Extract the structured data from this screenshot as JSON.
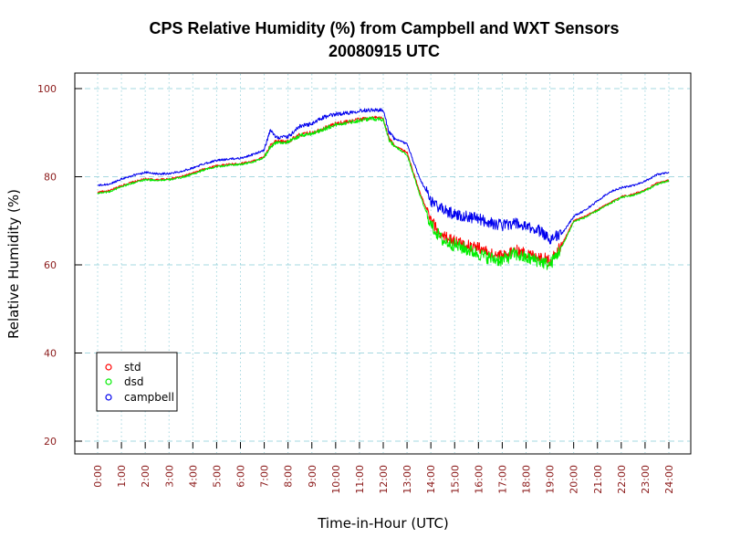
{
  "chart_data": {
    "type": "line",
    "title": "CPS Relative Humidity (%) from Campbell and WXT Sensors",
    "subtitle": "20080915  UTC",
    "xlabel": "Time-in-Hour (UTC)",
    "ylabel": "Relative Humidity (%)",
    "xlim": [
      0,
      24
    ],
    "ylim": [
      17,
      104
    ],
    "x_ticks": [
      "0:00",
      "1:00",
      "2:00",
      "3:00",
      "4:00",
      "5:00",
      "6:00",
      "7:00",
      "8:00",
      "9:00",
      "10:00",
      "11:00",
      "12:00",
      "13:00",
      "14:00",
      "15:00",
      "16:00",
      "17:00",
      "18:00",
      "19:00",
      "20:00",
      "21:00",
      "22:00",
      "23:00",
      "24:00"
    ],
    "y_ticks": [
      20,
      40,
      60,
      80,
      100
    ],
    "grid": true,
    "legend_position": "bottom-left",
    "x": [
      0,
      0.5,
      1,
      1.5,
      2,
      2.5,
      3,
      3.5,
      4,
      4.5,
      5,
      5.5,
      6,
      6.5,
      7,
      7.25,
      7.5,
      8,
      8.5,
      9,
      9.5,
      10,
      10.5,
      11,
      11.5,
      12,
      12.25,
      12.5,
      13,
      13.5,
      14,
      14.5,
      15,
      15.5,
      16,
      16.5,
      17,
      17.5,
      18,
      18.5,
      19,
      19.5,
      20,
      20.5,
      21,
      21.5,
      22,
      22.5,
      23,
      23.5,
      24
    ],
    "series": [
      {
        "name": "std",
        "color": "#ff0000",
        "values": [
          76.5,
          76.8,
          78.0,
          78.8,
          79.5,
          79.3,
          79.5,
          80.0,
          80.8,
          81.8,
          82.5,
          82.8,
          83.0,
          83.5,
          84.5,
          87.0,
          88.0,
          88.0,
          89.5,
          90.0,
          91.0,
          92.0,
          92.5,
          93.0,
          93.4,
          93.2,
          88.5,
          87.0,
          85.5,
          77.0,
          70.0,
          66.5,
          65.5,
          64.5,
          64.0,
          62.5,
          62.0,
          63.5,
          62.5,
          62.0,
          61.0,
          64.5,
          70.0,
          71.0,
          72.5,
          74.0,
          75.5,
          76.0,
          77.0,
          78.5,
          79.2
        ]
      },
      {
        "name": "dsd",
        "color": "#00ee00",
        "values": [
          76.3,
          76.6,
          77.8,
          78.6,
          79.3,
          79.2,
          79.3,
          79.8,
          80.6,
          81.6,
          82.3,
          82.6,
          82.8,
          83.3,
          84.3,
          86.8,
          87.8,
          87.8,
          89.3,
          89.8,
          90.8,
          91.8,
          92.3,
          92.8,
          93.2,
          93.0,
          88.3,
          86.8,
          85.0,
          76.5,
          69.0,
          65.5,
          64.5,
          63.5,
          62.5,
          61.5,
          61.0,
          62.5,
          61.5,
          61.0,
          60.0,
          64.0,
          69.8,
          70.8,
          72.3,
          73.8,
          75.3,
          75.8,
          76.8,
          78.3,
          79.0
        ]
      },
      {
        "name": "campbell",
        "color": "#0000ee",
        "values": [
          78.0,
          78.3,
          79.5,
          80.3,
          81.0,
          80.7,
          80.7,
          81.2,
          82.0,
          83.0,
          83.7,
          84.0,
          84.2,
          85.0,
          86.0,
          90.5,
          89.0,
          89.0,
          91.5,
          92.0,
          93.5,
          94.2,
          94.5,
          95.0,
          95.2,
          95.0,
          90.0,
          88.5,
          87.5,
          80.0,
          74.5,
          72.5,
          71.5,
          71.0,
          70.5,
          69.5,
          69.0,
          69.5,
          68.5,
          68.0,
          66.0,
          67.0,
          71.0,
          72.5,
          74.5,
          76.5,
          77.5,
          78.0,
          79.0,
          80.5,
          81.0
        ]
      }
    ]
  }
}
